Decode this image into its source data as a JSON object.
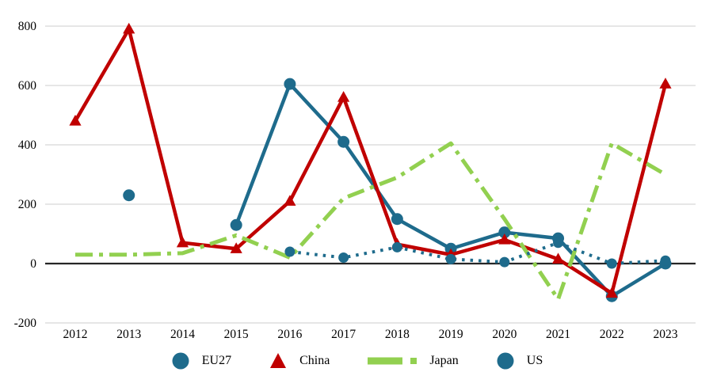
{
  "chart_data": {
    "type": "line",
    "title": "",
    "xlabel": "",
    "ylabel": "",
    "x": [
      2012,
      2013,
      2014,
      2015,
      2016,
      2017,
      2018,
      2019,
      2020,
      2021,
      2022,
      2023
    ],
    "ylim": [
      -200,
      800
    ],
    "yticks": [
      800,
      600,
      400,
      200,
      0,
      -200
    ],
    "grid": "horizontal",
    "legend_position": "bottom",
    "series": [
      {
        "name": "EU27",
        "color": "#1e6b8c",
        "style": "solid",
        "marker": "circle",
        "marker_size": 7.5,
        "line_width": 4.5,
        "values": [
          null,
          230,
          null,
          130,
          605,
          410,
          150,
          50,
          105,
          85,
          -110,
          0
        ]
      },
      {
        "name": "China",
        "color": "#c00000",
        "style": "solid",
        "marker": "triangle",
        "marker_size": 8,
        "line_width": 4.5,
        "values": [
          480,
          790,
          70,
          50,
          210,
          560,
          65,
          30,
          80,
          15,
          -100,
          605
        ]
      },
      {
        "name": "Japan",
        "color": "#92d050",
        "style": "dash-dot",
        "marker": "none",
        "marker_size": 0,
        "line_width": 5,
        "values": [
          30,
          30,
          35,
          95,
          20,
          220,
          290,
          405,
          150,
          -120,
          405,
          300
        ]
      },
      {
        "name": "US",
        "color": "#1e6b8c",
        "style": "dotted",
        "marker": "circle",
        "marker_size": 6.5,
        "line_width": 4,
        "values": [
          null,
          null,
          null,
          null,
          40,
          20,
          55,
          15,
          5,
          70,
          0,
          10
        ]
      }
    ],
    "axis_colors": {
      "gridline": "#d6d6d6",
      "zero_line": "#262626",
      "tick_text": "#000000"
    }
  },
  "legend": {
    "items": [
      {
        "label": "EU27"
      },
      {
        "label": "China"
      },
      {
        "label": "Japan"
      },
      {
        "label": "US"
      }
    ]
  }
}
